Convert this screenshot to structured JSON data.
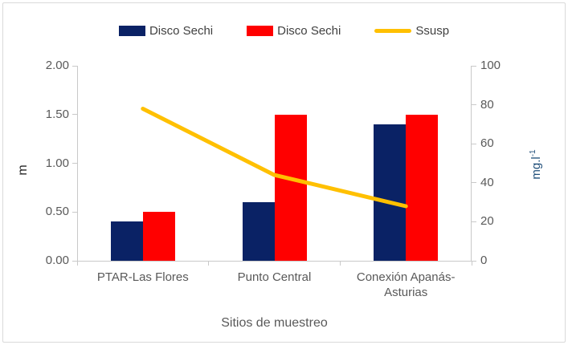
{
  "chart_data": {
    "type": "bar",
    "title": "",
    "categories": [
      "PTAR-Las Flores",
      "Punto Central",
      "Conexión Apanás-Asturias"
    ],
    "series": [
      {
        "name": "Disco Sechi",
        "type": "bar",
        "color": "#0a2265",
        "axis": "left",
        "values": [
          0.4,
          0.6,
          1.4
        ]
      },
      {
        "name": "Disco Sechi",
        "type": "bar",
        "color": "#ff0000",
        "axis": "left",
        "values": [
          0.5,
          1.5,
          1.5
        ]
      },
      {
        "name": "Ssusp",
        "type": "line",
        "color": "#ffc000",
        "axis": "right",
        "values": [
          78,
          44,
          28
        ]
      }
    ],
    "xlabel": "Sitios de muestreo",
    "left_axis": {
      "label": "m",
      "min": 0,
      "max": 2,
      "ticks": [
        "0.00",
        "0.50",
        "1.00",
        "1.50",
        "2.00"
      ]
    },
    "right_axis": {
      "label": "mg.l",
      "label_sup": "-1",
      "min": 0,
      "max": 100,
      "ticks": [
        "0",
        "20",
        "40",
        "60",
        "80",
        "100"
      ]
    },
    "grid": false,
    "legend_position": "top"
  },
  "colors": {
    "axis_line": "#c9c9c9",
    "tick_text": "#595959",
    "legend_text": "#404040",
    "border": "#d9d9d9",
    "background": "#ffffff"
  }
}
